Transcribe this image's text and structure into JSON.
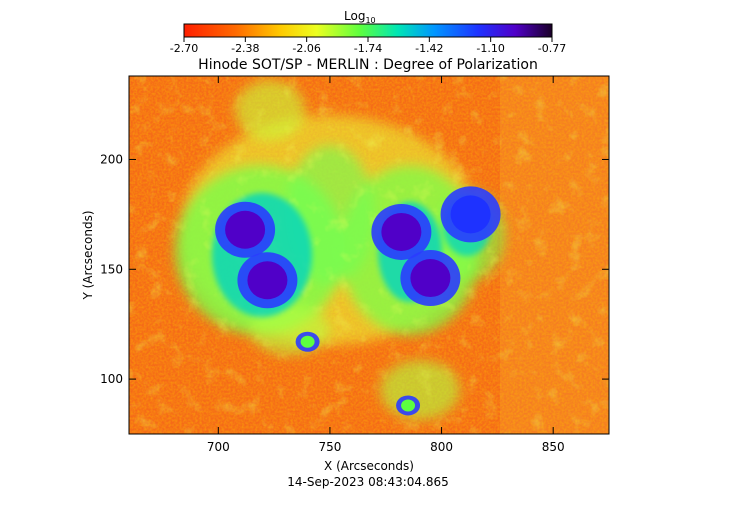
{
  "chart_data": {
    "type": "heatmap",
    "title": "Hinode SOT/SP - MERLIN : Degree of Polarization",
    "xlabel": "X (Arcseconds)",
    "ylabel": "Y (Arcseconds)",
    "footer": "14-Sep-2023 08:43:04.865",
    "xlim": [
      660,
      875
    ],
    "ylim": [
      75,
      238
    ],
    "x_ticks": [
      700,
      750,
      800,
      850
    ],
    "y_ticks": [
      100,
      150,
      200
    ],
    "colorbar": {
      "label_base": "Log",
      "label_sub": "10",
      "ticks": [
        "-2.70",
        "-2.38",
        "-2.06",
        "-1.74",
        "-1.42",
        "-1.10",
        "-0.77"
      ],
      "range": [
        -2.7,
        -0.77
      ],
      "colormap": "rainbow (red to dark violet)"
    },
    "features": [
      {
        "x": 712,
        "y": 168,
        "value": -0.85
      },
      {
        "x": 722,
        "y": 145,
        "value": -0.85
      },
      {
        "x": 782,
        "y": 167,
        "value": -0.95
      },
      {
        "x": 795,
        "y": 146,
        "value": -0.95
      },
      {
        "x": 813,
        "y": 175,
        "value": -1.0
      },
      {
        "x": 785,
        "y": 88,
        "value": -1.5
      },
      {
        "x": 740,
        "y": 117,
        "value": -1.55
      }
    ]
  }
}
